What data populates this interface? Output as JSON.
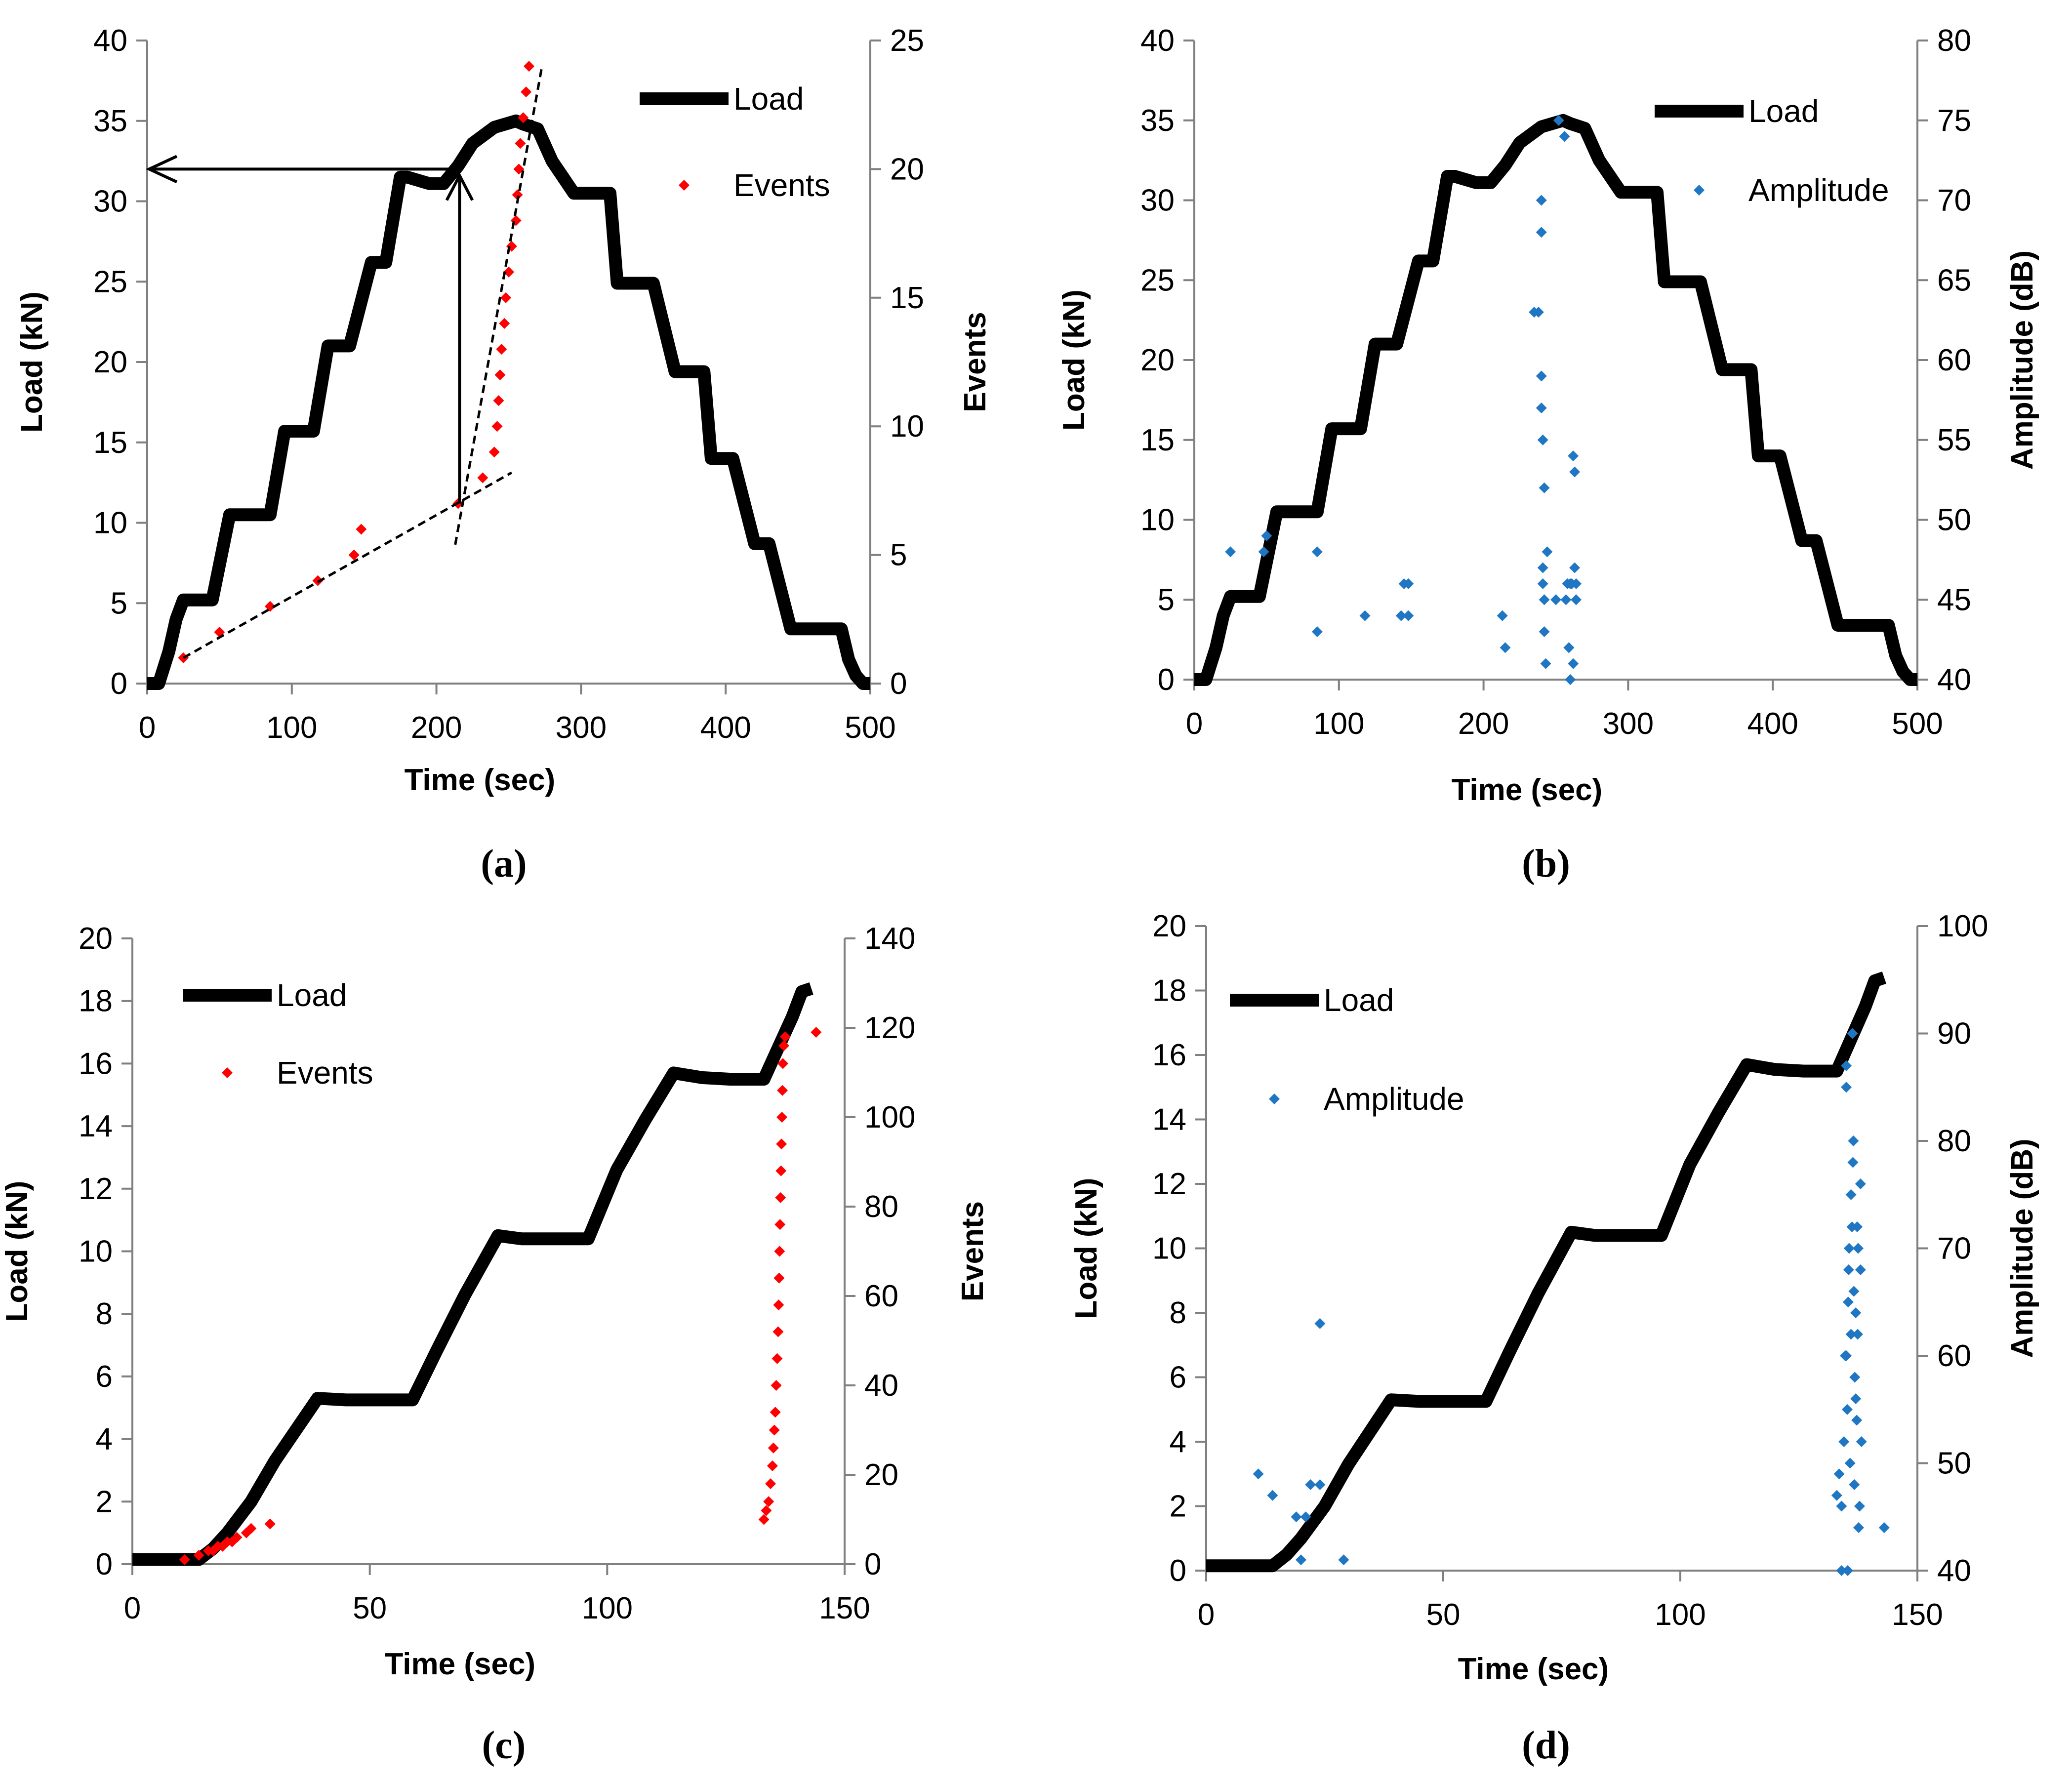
{
  "colors": {
    "load": "#000000",
    "events": "#ff0000",
    "amplitude": "#1f77c4",
    "axis": "#808080"
  },
  "chart_data": [
    {
      "id": "a",
      "type": "line",
      "panel_label": "(a)",
      "xlabel": "Time (sec)",
      "ylabel": "Load (kN)",
      "y2label": "Events",
      "xlim": [
        0,
        500
      ],
      "ylim": [
        0,
        40
      ],
      "y2lim": [
        0,
        25
      ],
      "xticks": [
        0,
        100,
        200,
        300,
        400,
        500
      ],
      "yticks": [
        0,
        5,
        10,
        15,
        20,
        25,
        30,
        35,
        40
      ],
      "y2ticks": [
        0,
        5,
        10,
        15,
        20,
        25
      ],
      "legend": [
        "Load",
        "Events"
      ],
      "series": [
        {
          "name": "Load",
          "axis": "y",
          "kind": "line",
          "x": [
            0,
            8,
            15,
            20,
            25,
            40,
            45,
            57,
            60,
            75,
            85,
            95,
            100,
            115,
            125,
            135,
            140,
            155,
            165,
            175,
            180,
            195,
            205,
            215,
            225,
            240,
            255,
            260,
            270,
            280,
            295,
            300,
            320,
            325,
            335,
            345,
            350,
            365,
            375,
            385,
            390,
            405,
            420,
            425,
            430,
            445,
            455,
            460,
            465,
            480,
            485,
            490,
            495,
            500
          ],
          "y": [
            0,
            0,
            2,
            4,
            5.2,
            5.2,
            5.2,
            10.5,
            10.5,
            10.5,
            10.5,
            15.7,
            15.7,
            15.7,
            21,
            21,
            21,
            26.2,
            26.2,
            31.5,
            31.5,
            31.1,
            31.1,
            32.2,
            33.6,
            34.6,
            35,
            34.8,
            34.5,
            32.5,
            30.5,
            30.5,
            30.5,
            24.9,
            24.9,
            24.9,
            24.9,
            19.4,
            19.4,
            19.4,
            14,
            14,
            8.7,
            8.7,
            8.7,
            3.4,
            3.4,
            3.4,
            3.4,
            3.4,
            1.5,
            0.5,
            0,
            0
          ]
        },
        {
          "name": "Events",
          "axis": "y2",
          "kind": "scatter",
          "x": [
            25,
            50,
            85,
            118,
            143,
            148,
            215,
            232,
            240,
            242,
            243,
            244,
            245,
            247,
            248,
            250,
            252,
            255,
            256,
            257,
            258,
            260,
            262,
            264
          ],
          "y": [
            1,
            2,
            3,
            4,
            5,
            6,
            7,
            8,
            9,
            10,
            11,
            12,
            13,
            14,
            15,
            16,
            17,
            18,
            19,
            20,
            21,
            22,
            23,
            24
          ]
        }
      ]
    },
    {
      "id": "b",
      "type": "line",
      "panel_label": "(b)",
      "xlabel": "Time (sec)",
      "ylabel": "Load (kN)",
      "y2label": "Amplitude (dB)",
      "xlim": [
        0,
        500
      ],
      "ylim": [
        0,
        40
      ],
      "y2lim": [
        40,
        80
      ],
      "xticks": [
        0,
        100,
        200,
        300,
        400,
        500
      ],
      "yticks": [
        0,
        5,
        10,
        15,
        20,
        25,
        30,
        35,
        40
      ],
      "y2ticks": [
        40,
        45,
        50,
        55,
        60,
        65,
        70,
        75,
        80
      ],
      "legend": [
        "Load",
        "Amplitude"
      ],
      "series": [
        {
          "name": "Load",
          "axis": "y",
          "kind": "line",
          "x": [
            0,
            8,
            15,
            20,
            25,
            40,
            45,
            57,
            60,
            75,
            85,
            95,
            100,
            115,
            125,
            135,
            140,
            155,
            165,
            175,
            180,
            195,
            205,
            215,
            225,
            240,
            255,
            260,
            270,
            280,
            295,
            300,
            320,
            325,
            335,
            345,
            350,
            365,
            375,
            385,
            390,
            405,
            420,
            425,
            430,
            445,
            455,
            460,
            465,
            480,
            485,
            490,
            495,
            500
          ],
          "y": [
            0,
            0,
            2,
            4,
            5.2,
            5.2,
            5.2,
            10.5,
            10.5,
            10.5,
            10.5,
            15.7,
            15.7,
            15.7,
            21,
            21,
            21,
            26.2,
            26.2,
            31.5,
            31.5,
            31.1,
            31.1,
            32.2,
            33.6,
            34.6,
            35,
            34.8,
            34.5,
            32.5,
            30.5,
            30.5,
            30.5,
            24.9,
            24.9,
            24.9,
            24.9,
            19.4,
            19.4,
            19.4,
            14,
            14,
            8.7,
            8.7,
            8.7,
            3.4,
            3.4,
            3.4,
            3.4,
            3.4,
            1.5,
            0.5,
            0,
            0
          ]
        },
        {
          "name": "Amplitude",
          "axis": "y2",
          "kind": "scatter",
          "x": [
            25,
            48,
            50,
            85,
            85,
            118,
            143,
            145,
            148,
            148,
            213,
            215,
            235,
            238,
            240,
            240,
            240,
            240,
            241,
            241,
            241,
            242,
            242,
            242,
            243,
            244,
            250,
            252,
            256,
            257,
            258,
            259,
            259,
            260,
            260,
            261,
            262,
            262,
            263,
            263,
            264,
            264
          ],
          "y": [
            48,
            48,
            49,
            48,
            43,
            44,
            44,
            46,
            46,
            44,
            44,
            42,
            63,
            63,
            70,
            68,
            59,
            57,
            55,
            47,
            46,
            52,
            45,
            43,
            41,
            48,
            45,
            75,
            74,
            45,
            46,
            42,
            42,
            46,
            40,
            46,
            41,
            54,
            53,
            47,
            46,
            45
          ]
        }
      ]
    },
    {
      "id": "c",
      "type": "line",
      "panel_label": "(c)",
      "xlabel": "Time (sec)",
      "ylabel": "Load (kN)",
      "y2label": "Events",
      "xlim": [
        0,
        150
      ],
      "ylim": [
        0,
        20
      ],
      "y2lim": [
        0,
        140
      ],
      "xticks": [
        0,
        50,
        100,
        150
      ],
      "yticks": [
        0,
        2,
        4,
        6,
        8,
        10,
        12,
        14,
        16,
        18,
        20
      ],
      "y2ticks": [
        0,
        20,
        40,
        60,
        80,
        100,
        120,
        140
      ],
      "legend": [
        "Load",
        "Events"
      ],
      "series": [
        {
          "name": "Load",
          "axis": "y",
          "kind": "line",
          "x": [
            0,
            14,
            17,
            20,
            25,
            30,
            39,
            45,
            59,
            64,
            70,
            77,
            82,
            90,
            96,
            102,
            108,
            114,
            120,
            126,
            133,
            136,
            139,
            141,
            143
          ],
          "y": [
            0.15,
            0.15,
            0.5,
            1.0,
            2.0,
            3.3,
            5.3,
            5.25,
            5.25,
            6.8,
            8.6,
            10.5,
            10.4,
            10.4,
            10.4,
            12.6,
            14.2,
            15.7,
            15.55,
            15.5,
            15.5,
            16.5,
            17.5,
            18.3,
            18.4
          ]
        },
        {
          "name": "Events",
          "axis": "y2",
          "kind": "scatter",
          "x": [
            11,
            14,
            16,
            17,
            18,
            19,
            20,
            21,
            22,
            24,
            25,
            29,
            133,
            133.5,
            134,
            134.4,
            134.8,
            135,
            135.2,
            135.4,
            135.6,
            135.8,
            136,
            136.1,
            136.2,
            136.3,
            136.4,
            136.5,
            136.6,
            136.7,
            136.8,
            136.9,
            137,
            137.2,
            137.5,
            144
          ],
          "y": [
            1,
            2,
            3,
            3,
            4,
            4,
            5,
            5,
            6,
            7,
            8,
            9,
            10,
            12,
            14,
            18,
            22,
            26,
            30,
            34,
            40,
            46,
            52,
            58,
            64,
            70,
            76,
            82,
            88,
            94,
            100,
            106,
            112,
            116,
            118,
            119
          ]
        }
      ]
    },
    {
      "id": "d",
      "type": "line",
      "panel_label": "(d)",
      "xlabel": "Time (sec)",
      "ylabel": "Load (kN)",
      "y2label": "Amplitude (dB)",
      "xlim": [
        0,
        150
      ],
      "ylim": [
        0,
        20
      ],
      "y2lim": [
        40,
        100
      ],
      "xticks": [
        0,
        50,
        100,
        150
      ],
      "yticks": [
        0,
        2,
        4,
        6,
        8,
        10,
        12,
        14,
        16,
        18,
        20
      ],
      "y2ticks": [
        40,
        50,
        60,
        70,
        80,
        90,
        100
      ],
      "legend": [
        "Load",
        "Amplitude"
      ],
      "series": [
        {
          "name": "Load",
          "axis": "y",
          "kind": "line",
          "x": [
            0,
            14,
            17,
            20,
            25,
            30,
            39,
            45,
            59,
            64,
            70,
            77,
            82,
            90,
            96,
            102,
            108,
            114,
            120,
            126,
            133,
            136,
            139,
            141,
            143
          ],
          "y": [
            0.15,
            0.15,
            0.5,
            1.0,
            2.0,
            3.3,
            5.3,
            5.25,
            5.25,
            6.8,
            8.6,
            10.5,
            10.4,
            10.4,
            10.4,
            12.6,
            14.2,
            15.7,
            15.55,
            15.5,
            15.5,
            16.5,
            17.5,
            18.3,
            18.4
          ]
        },
        {
          "name": "Amplitude",
          "axis": "y2",
          "kind": "scatter",
          "x": [
            11,
            14,
            19,
            20,
            21,
            22,
            24,
            24,
            29,
            133,
            133.5,
            134,
            134,
            134.5,
            135,
            135,
            135,
            135.2,
            135.4,
            135.5,
            135.6,
            135.8,
            136,
            136,
            136.2,
            136.4,
            136.5,
            136.6,
            136.8,
            137,
            137,
            137.2,
            137.4,
            137.5,
            137.6,
            137.8,
            138,
            138,
            138.2,
            134.8,
            135.3,
            136.3,
            136.7,
            137.3,
            143
          ],
          "y": [
            49,
            47,
            45,
            41,
            45,
            48,
            48,
            63,
            41,
            47,
            49,
            40,
            46,
            52,
            87,
            85,
            60,
            55,
            65,
            68,
            70,
            50,
            62,
            75,
            72,
            78,
            80,
            66,
            58,
            56,
            64,
            54,
            62,
            70,
            44,
            46,
            68,
            76,
            52,
            60,
            40,
            90,
            48,
            72,
            44
          ]
        }
      ]
    }
  ]
}
